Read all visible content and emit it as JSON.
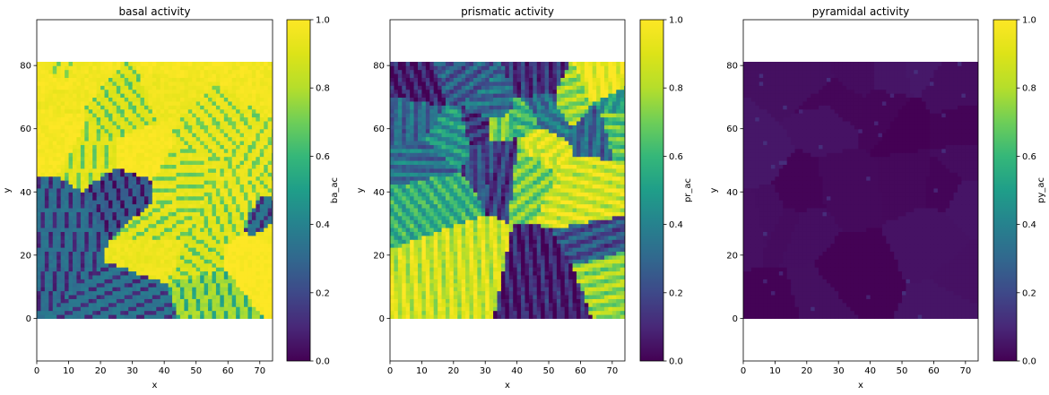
{
  "chart_data": [
    {
      "type": "heatmap",
      "title": "basal activity",
      "xlabel": "x",
      "ylabel": "y",
      "colorbar_label": "ba_ac",
      "colormap": "viridis",
      "xlim": [
        0,
        74
      ],
      "ylim": [
        -13.5,
        94.5
      ],
      "data_extent": {
        "x": [
          0,
          74
        ],
        "y": [
          0,
          81
        ]
      },
      "clim": [
        0.0,
        1.0
      ],
      "xticks": [
        0,
        10,
        20,
        30,
        40,
        50,
        60,
        70
      ],
      "yticks": [
        0,
        20,
        40,
        60,
        80
      ],
      "cticks": [
        "0.0",
        "0.2",
        "0.4",
        "0.6",
        "0.8",
        "1.0"
      ],
      "cvalues": [
        0.0,
        0.2,
        0.4,
        0.6,
        0.8,
        1.0
      ],
      "dominant_value": 0.95
    },
    {
      "type": "heatmap",
      "title": "prismatic activity",
      "xlabel": "x",
      "ylabel": "y",
      "colorbar_label": "pr_ac",
      "colormap": "viridis",
      "xlim": [
        0,
        74
      ],
      "ylim": [
        -13.5,
        94.5
      ],
      "data_extent": {
        "x": [
          0,
          74
        ],
        "y": [
          0,
          81
        ]
      },
      "clim": [
        0.0,
        1.0
      ],
      "xticks": [
        0,
        10,
        20,
        30,
        40,
        50,
        60,
        70
      ],
      "yticks": [
        0,
        20,
        40,
        60,
        80
      ],
      "cticks": [
        "0.0",
        "0.2",
        "0.4",
        "0.6",
        "0.8",
        "1.0"
      ],
      "cvalues": [
        0.0,
        0.2,
        0.4,
        0.6,
        0.8,
        1.0
      ],
      "dominant_value": 0.3
    },
    {
      "type": "heatmap",
      "title": "pyramidal activity",
      "xlabel": "x",
      "ylabel": "y",
      "colorbar_label": "py_ac",
      "colormap": "viridis",
      "xlim": [
        0,
        74
      ],
      "ylim": [
        -13.5,
        94.5
      ],
      "data_extent": {
        "x": [
          0,
          74
        ],
        "y": [
          0,
          81
        ]
      },
      "clim": [
        0.0,
        1.0
      ],
      "xticks": [
        0,
        10,
        20,
        30,
        40,
        50,
        60,
        70
      ],
      "yticks": [
        0,
        20,
        40,
        60,
        80
      ],
      "cticks": [
        "0.0",
        "0.2",
        "0.4",
        "0.6",
        "0.8",
        "1.0"
      ],
      "cvalues": [
        0.0,
        0.2,
        0.4,
        0.6,
        0.8,
        1.0
      ],
      "dominant_value": 0.02
    }
  ]
}
